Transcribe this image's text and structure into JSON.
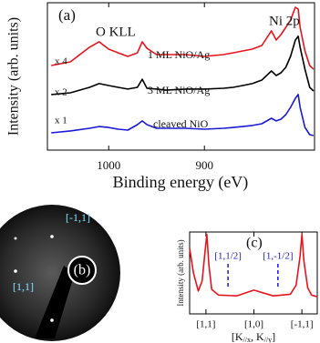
{
  "chart_data": [
    {
      "type": "line",
      "panel_label": "(a)",
      "xlabel": "Binding energy (eV)",
      "ylabel": "Intensity (arb. units)",
      "annotations": [
        "O KLL",
        "Ni 2p"
      ],
      "x": [
        1060,
        1040,
        1020,
        1010,
        1000,
        990,
        980,
        970,
        965,
        960,
        950,
        940,
        920,
        900,
        880,
        870,
        860,
        850,
        840,
        830,
        825,
        820,
        815,
        810,
        805,
        802,
        800,
        795,
        790,
        786
      ],
      "xlim": [
        1064,
        785
      ],
      "xticks": [
        1000,
        900
      ],
      "ylim": [
        0,
        10
      ],
      "series": [
        {
          "name": "1 ML NiO/Ag",
          "scale": "x 4",
          "color": "#e8141c",
          "values": [
            5.74,
            5.99,
            6.98,
            7.35,
            6.85,
            6.6,
            6.36,
            6.6,
            7.35,
            6.91,
            6.48,
            6.48,
            6.48,
            6.36,
            6.48,
            6.6,
            6.73,
            6.85,
            7.1,
            8.09,
            7.47,
            7.84,
            8.33,
            8.83,
            9.69,
            9.57,
            8.33,
            6.73,
            5.74,
            5.49
          ]
        },
        {
          "name": "3 ML NiO/Ag",
          "scale": "x 2",
          "color": "#000000",
          "values": [
            3.77,
            3.89,
            4.26,
            4.51,
            4.38,
            4.26,
            4.14,
            4.26,
            4.81,
            4.2,
            4.14,
            4.07,
            4.14,
            4.14,
            4.2,
            4.26,
            4.38,
            4.51,
            4.75,
            5.37,
            5.06,
            5.25,
            5.62,
            6.36,
            7.47,
            7.72,
            6.98,
            5.49,
            4.26,
            4.01
          ]
        },
        {
          "name": "cleaved NiO",
          "scale": "x 1",
          "color": "#1a1ad6",
          "values": [
            1.17,
            1.3,
            1.48,
            1.6,
            1.54,
            1.42,
            1.36,
            1.73,
            1.98,
            1.73,
            1.48,
            1.48,
            1.48,
            1.42,
            1.48,
            1.54,
            1.6,
            1.67,
            1.79,
            2.16,
            1.98,
            2.1,
            2.41,
            2.9,
            3.52,
            3.77,
            2.9,
            1.54,
            1.05,
            0.99
          ]
        }
      ]
    },
    {
      "type": "image",
      "panel_label": "(b)",
      "labels": [
        "[-1,1]",
        "[1,1]"
      ],
      "label_color": "#7fe0ff"
    },
    {
      "type": "line",
      "panel_label": "(c)",
      "ylabel": "Intensity (arb. units)",
      "xlabel_parts": [
        "[K",
        "//x",
        ", K",
        "//y",
        "]"
      ],
      "x": [
        -0.17,
        -0.13,
        -0.08,
        -0.04,
        -0.01,
        0.01,
        0.03,
        0.06,
        0.13,
        0.32,
        0.5,
        0.7,
        0.88,
        0.94,
        0.98,
        1.0,
        1.02,
        1.06,
        1.1,
        1.16
      ],
      "xlim": [
        -0.17,
        1.16
      ],
      "ylim": [
        0,
        10
      ],
      "xticks": [
        {
          "value": 0,
          "label": "[1,1]"
        },
        {
          "value": 0.5,
          "label": "[1,0]"
        },
        {
          "value": 1,
          "label": "[-1,1]"
        }
      ],
      "series": [
        {
          "color": "#e8141c",
          "values": [
            8.0,
            5.0,
            2.8,
            4.0,
            7.5,
            9.7,
            6.0,
            3.0,
            2.3,
            2.2,
            2.9,
            2.2,
            2.4,
            3.5,
            7.0,
            9.7,
            6.5,
            3.2,
            2.3,
            2.1
          ]
        }
      ],
      "markers": [
        {
          "text": "[1,1/2]",
          "x": 0.23
        },
        {
          "text": "[1,-1/2]",
          "x": 0.75
        }
      ],
      "marker_color": "#1a1ad6"
    }
  ]
}
